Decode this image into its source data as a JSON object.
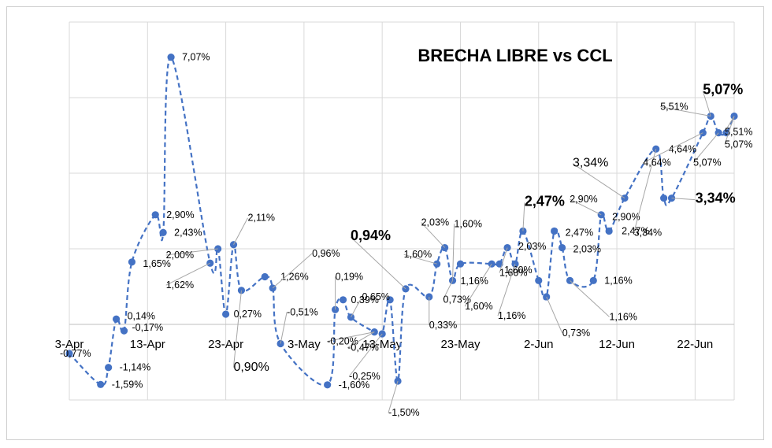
{
  "chart_data": {
    "type": "line",
    "title": "BRECHA LIBRE vs CCL",
    "xlabel": "",
    "ylabel": "",
    "x_ticks": [
      "3-Apr",
      "13-Apr",
      "23-Apr",
      "3-May",
      "13-May",
      "23-May",
      "2-Jun",
      "12-Jun",
      "22-Jun"
    ],
    "x_range_days": [
      0,
      85
    ],
    "ylim": [
      -2,
      8
    ],
    "y_gridlines": [
      -2,
      0,
      2,
      4,
      6,
      8
    ],
    "grid": true,
    "line_style": "dashed",
    "color": "#4472C4",
    "series": [
      {
        "points": [
          {
            "x": 0,
            "y": -0.77
          },
          {
            "x": 4,
            "y": -1.59
          },
          {
            "x": 5,
            "y": -1.14
          },
          {
            "x": 6,
            "y": 0.14
          },
          {
            "x": 7,
            "y": -0.17
          },
          {
            "x": 8,
            "y": 1.65
          },
          {
            "x": 11,
            "y": 2.9
          },
          {
            "x": 12,
            "y": 2.43
          },
          {
            "x": 13,
            "y": 7.07
          },
          {
            "x": 18,
            "y": 1.62
          },
          {
            "x": 19,
            "y": 2.0
          },
          {
            "x": 20,
            "y": 0.27
          },
          {
            "x": 21,
            "y": 2.11
          },
          {
            "x": 22,
            "y": 0.9
          },
          {
            "x": 25,
            "y": 1.26
          },
          {
            "x": 26,
            "y": 0.96
          },
          {
            "x": 27,
            "y": -0.51
          },
          {
            "x": 33,
            "y": -1.6
          },
          {
            "x": 34,
            "y": 0.39
          },
          {
            "x": 35,
            "y": 0.65
          },
          {
            "x": 36,
            "y": 0.19
          },
          {
            "x": 39,
            "y": -0.2
          },
          {
            "x": 40,
            "y": -0.25
          },
          {
            "x": 41,
            "y": 0.65
          },
          {
            "x": 42,
            "y": -1.5
          },
          {
            "x": 43,
            "y": 0.94
          },
          {
            "x": 46,
            "y": 0.73
          },
          {
            "x": 47,
            "y": 1.6
          },
          {
            "x": 48,
            "y": 2.03
          },
          {
            "x": 49,
            "y": 1.16
          },
          {
            "x": 50,
            "y": 1.6
          },
          {
            "x": 54,
            "y": 1.6
          },
          {
            "x": 55,
            "y": 1.6
          },
          {
            "x": 56,
            "y": 2.03
          },
          {
            "x": 57,
            "y": 1.6
          },
          {
            "x": 58,
            "y": 2.47
          },
          {
            "x": 60,
            "y": 1.16
          },
          {
            "x": 61,
            "y": 0.73
          },
          {
            "x": 62,
            "y": 2.47
          },
          {
            "x": 63,
            "y": 2.03
          },
          {
            "x": 64,
            "y": 1.16
          },
          {
            "x": 67,
            "y": 1.16
          },
          {
            "x": 68,
            "y": 2.9
          },
          {
            "x": 69,
            "y": 2.47
          },
          {
            "x": 71,
            "y": 3.34
          },
          {
            "x": 75,
            "y": 4.64
          },
          {
            "x": 76,
            "y": 3.34
          },
          {
            "x": 77,
            "y": 3.34
          },
          {
            "x": 81,
            "y": 5.07
          },
          {
            "x": 82,
            "y": 5.51
          },
          {
            "x": 83,
            "y": 5.07
          },
          {
            "x": 84,
            "y": 5.07
          },
          {
            "x": 85,
            "y": 5.51
          }
        ]
      }
    ],
    "data_labels": [
      {
        "text": "-0,77%",
        "x": 0,
        "y": -0.77,
        "dx": -12,
        "dy": 4,
        "size": "normal"
      },
      {
        "text": "-1,59%",
        "x": 4,
        "y": -1.59,
        "dx": 14,
        "dy": 4,
        "size": "normal"
      },
      {
        "text": "-1,14%",
        "x": 5,
        "y": -1.14,
        "dx": 14,
        "dy": 4,
        "size": "normal"
      },
      {
        "text": "0,14%",
        "x": 6,
        "y": 0.14,
        "dx": 14,
        "dy": 0,
        "size": "normal"
      },
      {
        "text": "-0,17%",
        "x": 7,
        "y": -0.17,
        "dx": 10,
        "dy": 0,
        "size": "normal"
      },
      {
        "text": "1,65%",
        "x": 8,
        "y": 1.65,
        "dx": 14,
        "dy": 6,
        "size": "normal"
      },
      {
        "text": "2,90%",
        "x": 11,
        "y": 2.9,
        "dx": 14,
        "dy": 4,
        "size": "normal"
      },
      {
        "text": "2,43%",
        "x": 12,
        "y": 2.43,
        "dx": 14,
        "dy": 4,
        "size": "normal"
      },
      {
        "text": "7,07%",
        "x": 13,
        "y": 7.07,
        "dx": 14,
        "dy": 4,
        "size": "normal"
      },
      {
        "text": "1,62%",
        "x": 18,
        "y": 1.62,
        "dx": -56,
        "dy": 32,
        "size": "normal"
      },
      {
        "text": "2,00%",
        "x": 19,
        "y": 2.0,
        "dx": -66,
        "dy": 12,
        "size": "normal"
      },
      {
        "text": "0,27%",
        "x": 20,
        "y": 0.27,
        "dx": 10,
        "dy": 4,
        "size": "normal"
      },
      {
        "text": "2,11%",
        "x": 21,
        "y": 2.11,
        "dx": 18,
        "dy": -30,
        "size": "normal"
      },
      {
        "text": "0,90%",
        "x": 22,
        "y": 0.9,
        "dx": -10,
        "dy": 102,
        "size": "mid"
      },
      {
        "text": "1,26%",
        "x": 25,
        "y": 1.26,
        "dx": 20,
        "dy": 4,
        "size": "normal"
      },
      {
        "text": "0,96%",
        "x": 26,
        "y": 0.96,
        "dx": 50,
        "dy": -40,
        "size": "normal"
      },
      {
        "text": "-0,51%",
        "x": 27,
        "y": -0.51,
        "dx": 8,
        "dy": -36,
        "size": "normal"
      },
      {
        "text": "-1,60%",
        "x": 33,
        "y": -1.6,
        "dx": 14,
        "dy": 4,
        "size": "normal"
      },
      {
        "text": "0,19%",
        "x": 34,
        "y": 0.39,
        "dx": 0,
        "dy": -38,
        "size": "normal"
      },
      {
        "text": "0,39%",
        "x": 36,
        "y": 0.19,
        "dx": 0,
        "dy": -18,
        "size": "normal"
      },
      {
        "text": "0,65%",
        "x": 36,
        "y": 0.19,
        "dx": 14,
        "dy": -22,
        "size": "normal"
      },
      {
        "text": "-0,20%",
        "x": 39,
        "y": -0.2,
        "dx": -60,
        "dy": 16,
        "size": "normal"
      },
      {
        "text": "-0,47%",
        "x": 39,
        "y": -0.2,
        "dx": -34,
        "dy": 24,
        "size": "normal"
      },
      {
        "text": "-0,25%",
        "x": 40,
        "y": -0.25,
        "dx": -42,
        "dy": 58,
        "size": "normal"
      },
      {
        "text": "-1,50%",
        "x": 42,
        "y": -1.5,
        "dx": -12,
        "dy": 44,
        "size": "normal"
      },
      {
        "text": "0,94%",
        "x": 43,
        "y": 0.94,
        "dx": -70,
        "dy": -62,
        "size": "big"
      },
      {
        "text": "0,33%",
        "x": 46,
        "y": 0.73,
        "dx": 0,
        "dy": 40,
        "size": "normal"
      },
      {
        "text": "1,60%",
        "x": 47,
        "y": 1.6,
        "dx": -42,
        "dy": -8,
        "size": "normal"
      },
      {
        "text": "2,03%",
        "x": 48,
        "y": 2.03,
        "dx": -30,
        "dy": -28,
        "size": "normal"
      },
      {
        "text": "1,60%",
        "x": 49,
        "y": 1.16,
        "dx": 2,
        "dy": -68,
        "size": "normal"
      },
      {
        "text": "0,73%",
        "x": 49,
        "y": 1.16,
        "dx": -12,
        "dy": 28,
        "size": "normal"
      },
      {
        "text": "1,16%",
        "x": 50,
        "y": 1.6,
        "dx": 0,
        "dy": 26,
        "size": "normal"
      },
      {
        "text": "1,60%",
        "x": 55,
        "y": 1.6,
        "dx": 6,
        "dy": 12,
        "size": "normal"
      },
      {
        "text": "1,60%",
        "x": 54,
        "y": 1.6,
        "dx": -34,
        "dy": 58,
        "size": "normal"
      },
      {
        "text": "1,60%",
        "x": 56,
        "y": 2.03,
        "dx": -10,
        "dy": 36,
        "size": "normal"
      },
      {
        "text": "2,03%",
        "x": 57,
        "y": 1.6,
        "dx": 4,
        "dy": -18,
        "size": "normal"
      },
      {
        "text": "1,16%",
        "x": 57,
        "y": 1.6,
        "dx": -22,
        "dy": 70,
        "size": "normal"
      },
      {
        "text": "2,47%",
        "x": 58,
        "y": 2.47,
        "dx": 2,
        "dy": -32,
        "size": "big"
      },
      {
        "text": "0,73%",
        "x": 61,
        "y": 0.73,
        "dx": 20,
        "dy": 50,
        "size": "normal"
      },
      {
        "text": "2,47%",
        "x": 62,
        "y": 2.47,
        "dx": 14,
        "dy": 6,
        "size": "normal"
      },
      {
        "text": "2,03%",
        "x": 63,
        "y": 2.03,
        "dx": 14,
        "dy": 6,
        "size": "normal"
      },
      {
        "text": "1,16%",
        "x": 64,
        "y": 1.16,
        "dx": 50,
        "dy": 50,
        "size": "normal"
      },
      {
        "text": "1,16%",
        "x": 67,
        "y": 1.16,
        "dx": 14,
        "dy": 4,
        "size": "normal"
      },
      {
        "text": "2,90%",
        "x": 68,
        "y": 2.9,
        "dx": -40,
        "dy": -16,
        "size": "normal"
      },
      {
        "text": "2,90%",
        "x": 69,
        "y": 2.47,
        "dx": 4,
        "dy": -14,
        "size": "normal"
      },
      {
        "text": "2,47%",
        "x": 69,
        "y": 2.47,
        "dx": 16,
        "dy": 4,
        "size": "normal"
      },
      {
        "text": "3,34%",
        "x": 71,
        "y": 3.34,
        "dx": -66,
        "dy": -40,
        "size": "mid"
      },
      {
        "text": "3,34%",
        "x": 75,
        "y": 4.64,
        "dx": -28,
        "dy": 110,
        "size": "normal"
      },
      {
        "text": "4,64%",
        "x": 75,
        "y": 4.64,
        "dx": 16,
        "dy": 4,
        "size": "normal"
      },
      {
        "text": "3,34%",
        "x": 77,
        "y": 3.34,
        "dx": 30,
        "dy": 6,
        "size": "big"
      },
      {
        "text": "5,51%",
        "x": 82,
        "y": 5.51,
        "dx": -64,
        "dy": -8,
        "size": "normal"
      },
      {
        "text": "5,07%",
        "x": 82,
        "y": 5.51,
        "dx": -10,
        "dy": -28,
        "size": "big"
      },
      {
        "text": "4,64%",
        "x": 81,
        "y": 5.07,
        "dx": -76,
        "dy": 42,
        "size": "normal"
      },
      {
        "text": "5,07%",
        "x": 83,
        "y": 5.07,
        "dx": -32,
        "dy": 42,
        "size": "normal"
      },
      {
        "text": "5,51%",
        "x": 85,
        "y": 5.51,
        "dx": -12,
        "dy": 24,
        "size": "normal"
      },
      {
        "text": "5,07%",
        "x": 85,
        "y": 5.51,
        "dx": -12,
        "dy": 40,
        "size": "normal"
      }
    ]
  }
}
